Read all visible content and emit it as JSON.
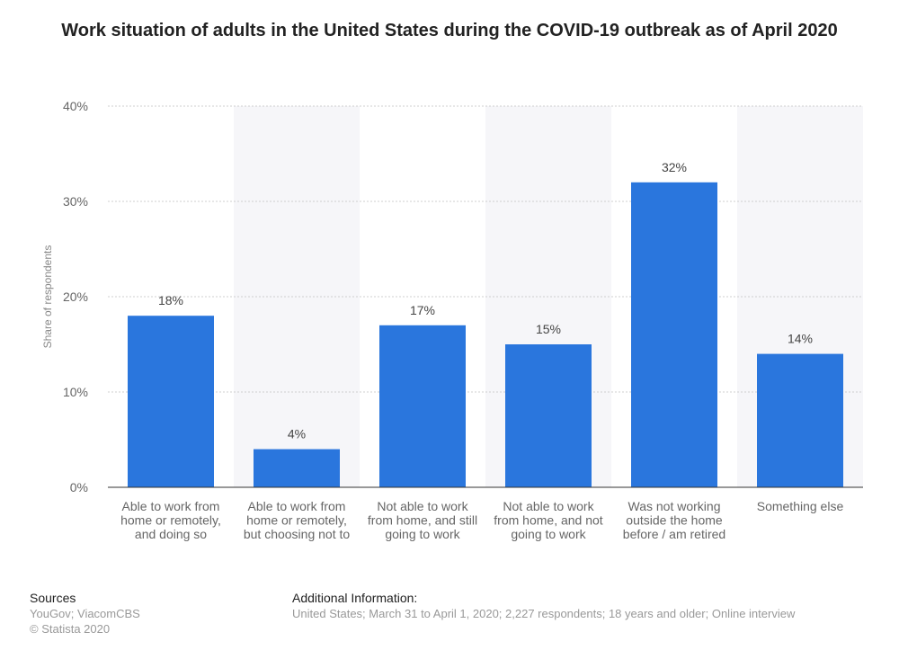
{
  "title": "Work situation of adults in the United States during the COVID-19 outbreak as of April 2020",
  "colors": {
    "bar": "#2a76dd",
    "band": "#f6f6f9",
    "grid": "#cfcfcf",
    "axis": "#333333"
  },
  "chart_data": {
    "type": "bar",
    "categories": [
      [
        "Able to work from",
        "home or remotely,",
        "and doing so"
      ],
      [
        "Able to work from",
        "home or remotely,",
        "but choosing not to"
      ],
      [
        "Not able to work",
        "from home, and still",
        "going to work"
      ],
      [
        "Not able to work",
        "from home, and not",
        "going to work"
      ],
      [
        "Was not working",
        "outside the home",
        "before / am retired"
      ],
      [
        "Something else"
      ]
    ],
    "values": [
      18,
      4,
      17,
      15,
      32,
      14
    ],
    "data_labels": [
      "18%",
      "4%",
      "17%",
      "15%",
      "32%",
      "14%"
    ],
    "ylabel": "Share of respondents",
    "ylim": [
      0,
      40
    ],
    "yticks": [
      0,
      10,
      20,
      30,
      40
    ],
    "ytick_labels": [
      "0%",
      "10%",
      "20%",
      "30%",
      "40%"
    ],
    "grid": true,
    "legend": "none"
  },
  "footer": {
    "sources_heading": "Sources",
    "sources_lines": [
      "YouGov; ViacomCBS",
      "© Statista 2020"
    ],
    "info_heading": "Additional Information:",
    "info_text": "United States; March 31 to April 1, 2020; 2,227 respondents; 18 years and older; Online interview"
  }
}
